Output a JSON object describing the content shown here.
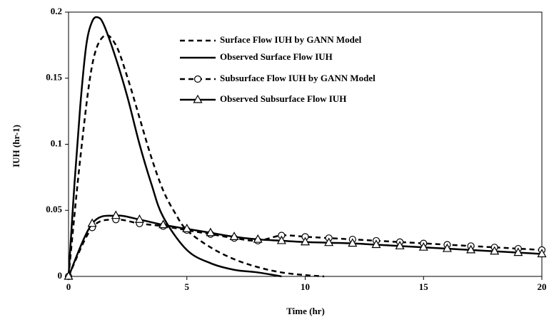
{
  "chart_data": {
    "type": "line",
    "x_label": "Time (hr)",
    "y_label": "IUH (hr-1)",
    "xlim": [
      0,
      20
    ],
    "xticks": [
      0,
      5,
      10,
      15,
      20
    ],
    "ylim": [
      0,
      0.2
    ],
    "yticks": [
      0,
      0.05,
      0.1,
      0.15,
      0.2
    ],
    "legend": "upper center",
    "series": [
      {
        "name": "Surface Flow IUH by GANN Model",
        "color": "#000000",
        "style": "dashed",
        "marker": "none",
        "x": [
          0,
          0.5,
          1,
          1.5,
          2,
          2.5,
          3,
          3.5,
          4,
          4.5,
          5,
          6,
          7,
          8,
          9,
          10,
          10.8
        ],
        "values": [
          0,
          0.09,
          0.16,
          0.182,
          0.175,
          0.15,
          0.12,
          0.09,
          0.065,
          0.048,
          0.035,
          0.022,
          0.013,
          0.007,
          0.003,
          0.001,
          0
        ]
      },
      {
        "name": "Observed Surface Flow IUH",
        "color": "#000000",
        "style": "solid",
        "marker": "none",
        "x": [
          0,
          0.25,
          0.5,
          0.75,
          1,
          1.25,
          1.5,
          2,
          2.5,
          3,
          3.5,
          4,
          5,
          6,
          7,
          8,
          9
        ],
        "values": [
          0,
          0.07,
          0.13,
          0.175,
          0.193,
          0.196,
          0.19,
          0.165,
          0.135,
          0.1,
          0.07,
          0.045,
          0.02,
          0.01,
          0.005,
          0.003,
          0
        ]
      },
      {
        "name": "Subsurface Flow IUH by GANN Model",
        "color": "#000000",
        "style": "dashed",
        "marker": "circle",
        "x": [
          0,
          1,
          2,
          3,
          4,
          5,
          6,
          7,
          8,
          9,
          10,
          11,
          12,
          13,
          14,
          15,
          16,
          17,
          18,
          19,
          20
        ],
        "values": [
          0,
          0.037,
          0.043,
          0.04,
          0.038,
          0.035,
          0.032,
          0.029,
          0.027,
          0.031,
          0.03,
          0.029,
          0.028,
          0.027,
          0.026,
          0.025,
          0.024,
          0.023,
          0.022,
          0.021,
          0.02
        ]
      },
      {
        "name": "Observed Subsurface  Flow IUH",
        "color": "#000000",
        "style": "solid",
        "marker": "triangle",
        "x": [
          0,
          1,
          2,
          3,
          4,
          5,
          6,
          7,
          8,
          9,
          10,
          11,
          12,
          13,
          14,
          15,
          16,
          17,
          18,
          19,
          20
        ],
        "values": [
          0,
          0.04,
          0.046,
          0.043,
          0.039,
          0.036,
          0.033,
          0.03,
          0.028,
          0.027,
          0.026,
          0.0255,
          0.025,
          0.024,
          0.023,
          0.022,
          0.021,
          0.02,
          0.019,
          0.018,
          0.017
        ]
      }
    ]
  }
}
